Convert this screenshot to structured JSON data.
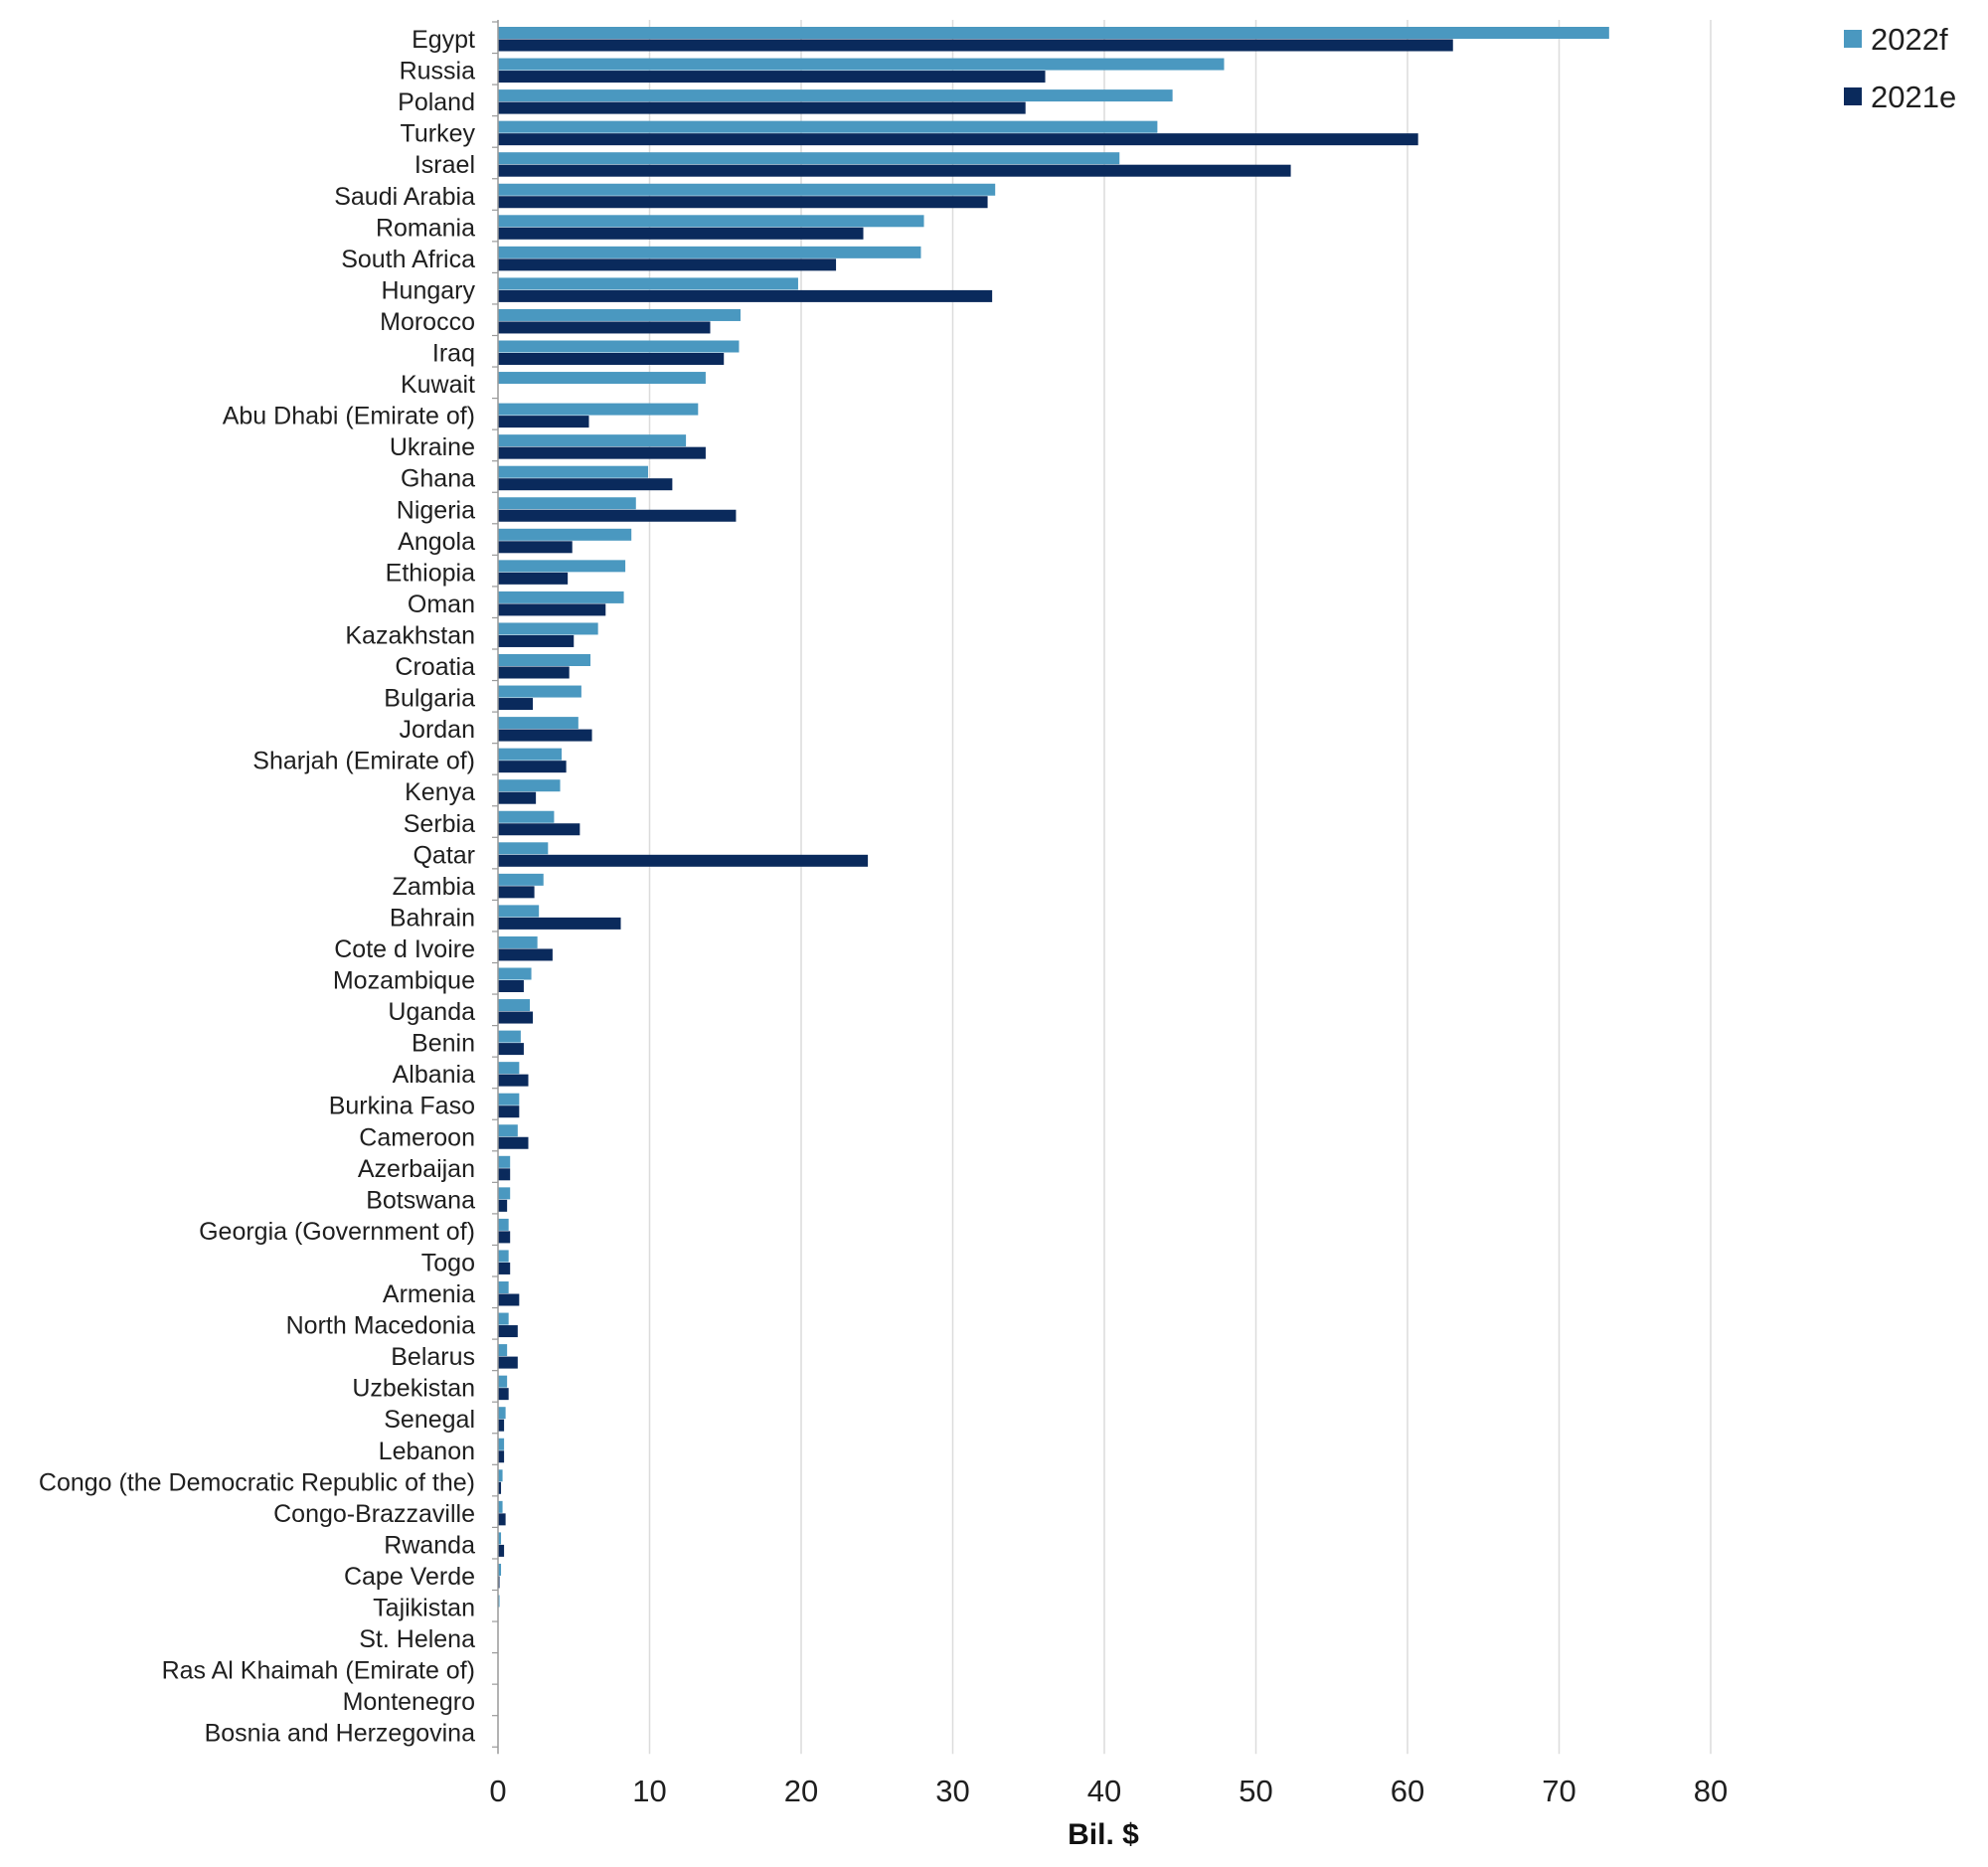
{
  "chart_data": {
    "type": "bar",
    "orientation": "horizontal",
    "title": "",
    "xlabel": "Bil. $",
    "ylabel": "",
    "xlim": [
      0,
      80
    ],
    "x_ticks": [
      0,
      10,
      20,
      30,
      40,
      50,
      60,
      70,
      80
    ],
    "grid": "vertical",
    "legend_position": "top-right",
    "categories": [
      "Egypt",
      "Russia",
      "Poland",
      "Turkey",
      "Israel",
      "Saudi Arabia",
      "Romania",
      "South Africa",
      "Hungary",
      "Morocco",
      "Iraq",
      "Kuwait",
      "Abu Dhabi (Emirate of)",
      "Ukraine",
      "Ghana",
      "Nigeria",
      "Angola",
      "Ethiopia",
      "Oman",
      "Kazakhstan",
      "Croatia",
      "Bulgaria",
      "Jordan",
      "Sharjah (Emirate of)",
      "Kenya",
      "Serbia",
      "Qatar",
      "Zambia",
      "Bahrain",
      "Cote d Ivoire",
      "Mozambique",
      "Uganda",
      "Benin",
      "Albania",
      "Burkina Faso",
      "Cameroon",
      "Azerbaijan",
      "Botswana",
      "Georgia (Government of)",
      "Togo",
      "Armenia",
      "North Macedonia",
      "Belarus",
      "Uzbekistan",
      "Senegal",
      "Lebanon",
      "Congo (the Democratic Republic of the)",
      "Congo-Brazzaville",
      "Rwanda",
      "Cape Verde",
      "Tajikistan",
      "St. Helena",
      "Ras Al Khaimah (Emirate of)",
      "Montenegro",
      "Bosnia and Herzegovina"
    ],
    "series": [
      {
        "name": "2022f",
        "color": "#4a98c0",
        "values": [
          73.3,
          47.9,
          44.5,
          43.5,
          41.0,
          32.8,
          28.1,
          27.9,
          19.8,
          16.0,
          15.9,
          13.7,
          13.2,
          12.4,
          9.9,
          9.1,
          8.8,
          8.4,
          8.3,
          6.6,
          6.1,
          5.5,
          5.3,
          4.2,
          4.1,
          3.7,
          3.3,
          3.0,
          2.7,
          2.6,
          2.2,
          2.1,
          1.5,
          1.4,
          1.4,
          1.3,
          0.8,
          0.8,
          0.7,
          0.7,
          0.7,
          0.7,
          0.6,
          0.6,
          0.5,
          0.4,
          0.3,
          0.3,
          0.2,
          0.2,
          0.1,
          0.0,
          0.0,
          0.0,
          0.0
        ]
      },
      {
        "name": "2021e",
        "color": "#0a2a5c",
        "values": [
          63.0,
          36.1,
          34.8,
          60.7,
          52.3,
          32.3,
          24.1,
          22.3,
          32.6,
          14.0,
          14.9,
          0.0,
          6.0,
          13.7,
          11.5,
          15.7,
          4.9,
          4.6,
          7.1,
          5.0,
          4.7,
          2.3,
          6.2,
          4.5,
          2.5,
          5.4,
          24.4,
          2.4,
          8.1,
          3.6,
          1.7,
          2.3,
          1.7,
          2.0,
          1.4,
          2.0,
          0.8,
          0.6,
          0.8,
          0.8,
          1.4,
          1.3,
          1.3,
          0.7,
          0.4,
          0.4,
          0.2,
          0.5,
          0.4,
          0.1,
          0.0,
          0.0,
          0.0,
          0.0,
          0.0
        ]
      }
    ]
  }
}
